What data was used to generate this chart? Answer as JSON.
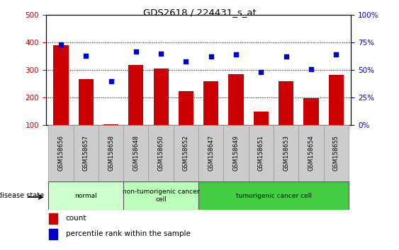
{
  "title": "GDS2618 / 224431_s_at",
  "samples": [
    "GSM158656",
    "GSM158657",
    "GSM158658",
    "GSM158648",
    "GSM158650",
    "GSM158652",
    "GSM158647",
    "GSM158649",
    "GSM158651",
    "GSM158653",
    "GSM158654",
    "GSM158655"
  ],
  "counts": [
    390,
    268,
    102,
    318,
    305,
    222,
    260,
    285,
    148,
    260,
    197,
    283
  ],
  "percentiles": [
    73,
    63,
    40,
    67,
    65,
    58,
    62,
    64,
    48,
    62,
    51,
    64
  ],
  "bar_color": "#CC0000",
  "dot_color": "#0000CC",
  "ylim_left": [
    100,
    500
  ],
  "ylim_right": [
    0,
    100
  ],
  "yticks_left": [
    100,
    200,
    300,
    400,
    500
  ],
  "yticks_right": [
    0,
    25,
    50,
    75,
    100
  ],
  "groups": [
    {
      "label": "normal",
      "start": 0,
      "end": 3,
      "color": "#CCFFCC"
    },
    {
      "label": "non-tumorigenic cancer\ncell",
      "start": 3,
      "end": 6,
      "color": "#BBFFBB"
    },
    {
      "label": "tumorigenic cancer cell",
      "start": 6,
      "end": 12,
      "color": "#44CC44"
    }
  ],
  "disease_state_label": "disease state",
  "legend_count_label": "count",
  "legend_percentile_label": "percentile rank within the sample",
  "background_color": "#ffffff"
}
